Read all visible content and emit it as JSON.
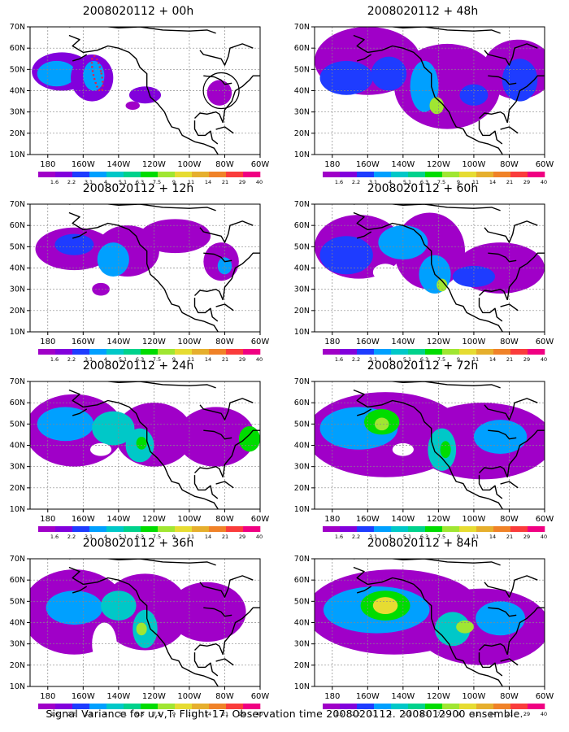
{
  "chart_data": {
    "type": "heatmap",
    "caption": "Signal Variance for u,v,T. Flight 17. Observation time 2008020112. 2008012900 ensemble.",
    "x_ticks": [
      "180",
      "160W",
      "140W",
      "120W",
      "100W",
      "80W",
      "60W"
    ],
    "y_ticks": [
      "10N",
      "20N",
      "30N",
      "40N",
      "50N",
      "60N",
      "70N"
    ],
    "xlim": [
      -190,
      -60
    ],
    "ylim": [
      10,
      70
    ],
    "colorbar": {
      "labels": [
        "1.6",
        "2.2",
        "3.1",
        "4",
        "5.1",
        "6.3",
        "7.5",
        "9",
        "11",
        "14",
        "21",
        "29",
        "40"
      ],
      "colors": [
        "#a000c8",
        "#8200dc",
        "#1e3cff",
        "#00a0ff",
        "#00c8c8",
        "#00d28c",
        "#00dc00",
        "#a0e632",
        "#e6dc32",
        "#e6af2d",
        "#f08228",
        "#fa3c3c",
        "#f00082"
      ]
    },
    "panels": [
      {
        "title": "2008020112 + 00h",
        "lead_hours": 0
      },
      {
        "title": "2008020112 + 48h",
        "lead_hours": 48
      },
      {
        "title": "2008020112 + 12h",
        "lead_hours": 12
      },
      {
        "title": "2008020112 + 60h",
        "lead_hours": 60
      },
      {
        "title": "2008020112 + 24h",
        "lead_hours": 24
      },
      {
        "title": "2008020112 + 72h",
        "lead_hours": 72
      },
      {
        "title": "2008020112 + 36h",
        "lead_hours": 36
      },
      {
        "title": "2008020112 + 84h",
        "lead_hours": 84
      }
    ],
    "blobs": [
      [
        {
          "lon": -172,
          "lat": 49,
          "rx": 17,
          "ry": 9,
          "level": 1
        },
        {
          "lon": -175,
          "lat": 48,
          "rx": 11,
          "ry": 6,
          "level": 3
        },
        {
          "lon": -155,
          "lat": 46,
          "rx": 12,
          "ry": 11,
          "level": 1
        },
        {
          "lon": -154,
          "lat": 47,
          "rx": 6,
          "ry": 7,
          "level": 3
        },
        {
          "lon": -125,
          "lat": 38,
          "rx": 9,
          "ry": 4,
          "level": 1
        },
        {
          "lon": -132,
          "lat": 33,
          "rx": 4,
          "ry": 2,
          "level": 0
        },
        {
          "lon": -83,
          "lat": 39,
          "rx": 7,
          "ry": 6,
          "level": 0
        }
      ],
      [
        {
          "lon": -160,
          "lat": 54,
          "rx": 30,
          "ry": 16,
          "level": 0
        },
        {
          "lon": -115,
          "lat": 42,
          "rx": 30,
          "ry": 20,
          "level": 0
        },
        {
          "lon": -75,
          "lat": 50,
          "rx": 20,
          "ry": 14,
          "level": 0
        },
        {
          "lon": -172,
          "lat": 46,
          "rx": 15,
          "ry": 8,
          "level": 2
        },
        {
          "lon": -148,
          "lat": 48,
          "rx": 10,
          "ry": 8,
          "level": 2
        },
        {
          "lon": -128,
          "lat": 42,
          "rx": 8,
          "ry": 12,
          "level": 3
        },
        {
          "lon": -121,
          "lat": 33,
          "rx": 4,
          "ry": 4,
          "level": 7
        },
        {
          "lon": -100,
          "lat": 38,
          "rx": 8,
          "ry": 5,
          "level": 2
        },
        {
          "lon": -74,
          "lat": 45,
          "rx": 10,
          "ry": 10,
          "level": 2
        }
      ],
      [
        {
          "lon": -165,
          "lat": 49,
          "rx": 22,
          "ry": 10,
          "level": 0
        },
        {
          "lon": -135,
          "lat": 48,
          "rx": 18,
          "ry": 12,
          "level": 0
        },
        {
          "lon": -108,
          "lat": 55,
          "rx": 20,
          "ry": 8,
          "level": 0
        },
        {
          "lon": -82,
          "lat": 43,
          "rx": 10,
          "ry": 9,
          "level": 0
        },
        {
          "lon": -165,
          "lat": 51,
          "rx": 11,
          "ry": 5,
          "level": 2
        },
        {
          "lon": -143,
          "lat": 44,
          "rx": 9,
          "ry": 8,
          "level": 3
        },
        {
          "lon": -80,
          "lat": 41,
          "rx": 4,
          "ry": 4,
          "level": 3
        },
        {
          "lon": -150,
          "lat": 30,
          "rx": 5,
          "ry": 3,
          "level": 0
        }
      ],
      [
        {
          "lon": -165,
          "lat": 50,
          "rx": 25,
          "ry": 15,
          "level": 0
        },
        {
          "lon": -125,
          "lat": 48,
          "rx": 20,
          "ry": 18,
          "level": 0
        },
        {
          "lon": -85,
          "lat": 40,
          "rx": 25,
          "ry": 12,
          "level": 0
        },
        {
          "lon": -172,
          "lat": 46,
          "rx": 15,
          "ry": 9,
          "level": 2
        },
        {
          "lon": -140,
          "lat": 52,
          "rx": 14,
          "ry": 8,
          "level": 3
        },
        {
          "lon": -122,
          "lat": 37,
          "rx": 9,
          "ry": 9,
          "level": 3
        },
        {
          "lon": -118,
          "lat": 32,
          "rx": 3,
          "ry": 3,
          "level": 7
        },
        {
          "lon": -100,
          "lat": 36,
          "rx": 12,
          "ry": 5,
          "level": 2
        },
        {
          "lon": -150,
          "lat": 38,
          "rx": 7,
          "ry": 4,
          "level": -1
        }
      ],
      [
        {
          "lon": -165,
          "lat": 47,
          "rx": 28,
          "ry": 17,
          "level": 0
        },
        {
          "lon": -120,
          "lat": 45,
          "rx": 22,
          "ry": 15,
          "level": 0
        },
        {
          "lon": -85,
          "lat": 44,
          "rx": 22,
          "ry": 14,
          "level": 0
        },
        {
          "lon": -170,
          "lat": 50,
          "rx": 16,
          "ry": 8,
          "level": 3
        },
        {
          "lon": -143,
          "lat": 48,
          "rx": 12,
          "ry": 8,
          "level": 4
        },
        {
          "lon": -128,
          "lat": 40,
          "rx": 8,
          "ry": 8,
          "level": 4
        },
        {
          "lon": -127,
          "lat": 41,
          "rx": 3,
          "ry": 3,
          "level": 6
        },
        {
          "lon": -66,
          "lat": 43,
          "rx": 6,
          "ry": 6,
          "level": 6
        },
        {
          "lon": -150,
          "lat": 38,
          "rx": 6,
          "ry": 3,
          "level": -1
        }
      ],
      [
        {
          "lon": -150,
          "lat": 45,
          "rx": 45,
          "ry": 20,
          "level": 0
        },
        {
          "lon": -95,
          "lat": 42,
          "rx": 40,
          "ry": 18,
          "level": 0
        },
        {
          "lon": -165,
          "lat": 48,
          "rx": 22,
          "ry": 10,
          "level": 3
        },
        {
          "lon": -152,
          "lat": 51,
          "rx": 10,
          "ry": 6,
          "level": 6
        },
        {
          "lon": -152,
          "lat": 50,
          "rx": 4,
          "ry": 3,
          "level": 7
        },
        {
          "lon": -118,
          "lat": 38,
          "rx": 8,
          "ry": 10,
          "level": 4
        },
        {
          "lon": -116,
          "lat": 38,
          "rx": 3,
          "ry": 4,
          "level": 6
        },
        {
          "lon": -85,
          "lat": 44,
          "rx": 15,
          "ry": 8,
          "level": 3
        },
        {
          "lon": -140,
          "lat": 38,
          "rx": 6,
          "ry": 3,
          "level": -1
        }
      ],
      [
        {
          "lon": -165,
          "lat": 45,
          "rx": 30,
          "ry": 20,
          "level": 0
        },
        {
          "lon": -125,
          "lat": 45,
          "rx": 25,
          "ry": 18,
          "level": 0
        },
        {
          "lon": -90,
          "lat": 45,
          "rx": 22,
          "ry": 14,
          "level": 0
        },
        {
          "lon": -165,
          "lat": 47,
          "rx": 16,
          "ry": 8,
          "level": 3
        },
        {
          "lon": -140,
          "lat": 48,
          "rx": 10,
          "ry": 7,
          "level": 4
        },
        {
          "lon": -125,
          "lat": 37,
          "rx": 7,
          "ry": 9,
          "level": 4
        },
        {
          "lon": -127,
          "lat": 37,
          "rx": 3,
          "ry": 3,
          "level": 7
        },
        {
          "lon": -148,
          "lat": 30,
          "rx": 7,
          "ry": 10,
          "level": -1
        }
      ],
      [
        {
          "lon": -145,
          "lat": 45,
          "rx": 50,
          "ry": 20,
          "level": 0
        },
        {
          "lon": -95,
          "lat": 38,
          "rx": 38,
          "ry": 18,
          "level": 0
        },
        {
          "lon": -155,
          "lat": 46,
          "rx": 30,
          "ry": 11,
          "level": 3
        },
        {
          "lon": -150,
          "lat": 48,
          "rx": 14,
          "ry": 7,
          "level": 6
        },
        {
          "lon": -150,
          "lat": 48,
          "rx": 7,
          "ry": 4,
          "level": 8
        },
        {
          "lon": -112,
          "lat": 37,
          "rx": 10,
          "ry": 8,
          "level": 4
        },
        {
          "lon": -105,
          "lat": 38,
          "rx": 5,
          "ry": 3,
          "level": 7
        },
        {
          "lon": -85,
          "lat": 42,
          "rx": 14,
          "ry": 8,
          "level": 3
        }
      ]
    ]
  }
}
